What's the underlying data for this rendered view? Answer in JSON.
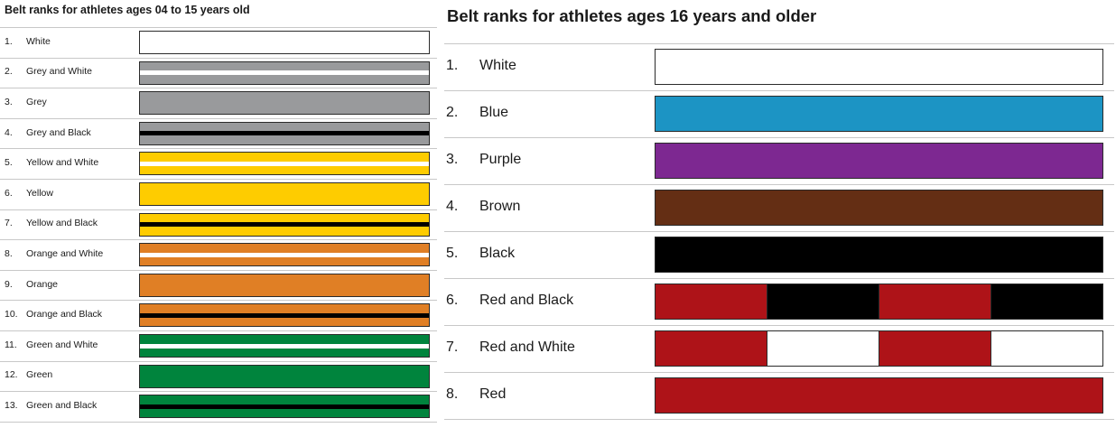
{
  "panels": {
    "youth": {
      "title": "Belt ranks for athletes ages 04 to 15 years old",
      "ranks": [
        {
          "num": "1.",
          "name": "White",
          "colors": [
            "#ffffff"
          ],
          "stripe": null
        },
        {
          "num": "2.",
          "name": "Grey and White",
          "colors": [
            "#999a9c"
          ],
          "stripe": "#ffffff"
        },
        {
          "num": "3.",
          "name": "Grey",
          "colors": [
            "#999a9c"
          ],
          "stripe": null
        },
        {
          "num": "4.",
          "name": "Grey and Black",
          "colors": [
            "#999a9c"
          ],
          "stripe": "#000000"
        },
        {
          "num": "5.",
          "name": "Yellow and White",
          "colors": [
            "#fecc00"
          ],
          "stripe": "#ffffff"
        },
        {
          "num": "6.",
          "name": "Yellow",
          "colors": [
            "#fecc00"
          ],
          "stripe": null
        },
        {
          "num": "7.",
          "name": "Yellow and Black",
          "colors": [
            "#fecc00"
          ],
          "stripe": "#000000"
        },
        {
          "num": "8.",
          "name": "Orange and White",
          "colors": [
            "#e07f25"
          ],
          "stripe": "#ffffff"
        },
        {
          "num": "9.",
          "name": "Orange",
          "colors": [
            "#e07f25"
          ],
          "stripe": null
        },
        {
          "num": "10.",
          "name": "Orange and Black",
          "colors": [
            "#e07f25"
          ],
          "stripe": "#000000"
        },
        {
          "num": "11.",
          "name": "Green and White",
          "colors": [
            "#00843d"
          ],
          "stripe": "#ffffff"
        },
        {
          "num": "12.",
          "name": "Green",
          "colors": [
            "#00843d"
          ],
          "stripe": null
        },
        {
          "num": "13.",
          "name": "Green and Black",
          "colors": [
            "#00843d"
          ],
          "stripe": "#000000"
        }
      ]
    },
    "adult": {
      "title": "Belt ranks for athletes ages 16 years and older",
      "ranks": [
        {
          "num": "1.",
          "name": "White",
          "colors": [
            "#ffffff"
          ],
          "stripe": null
        },
        {
          "num": "2.",
          "name": "Blue",
          "colors": [
            "#1c94c4"
          ],
          "stripe": null
        },
        {
          "num": "3.",
          "name": "Purple",
          "colors": [
            "#7d2891"
          ],
          "stripe": null
        },
        {
          "num": "4.",
          "name": "Brown",
          "colors": [
            "#642e14"
          ],
          "stripe": null
        },
        {
          "num": "5.",
          "name": "Black",
          "colors": [
            "#000000"
          ],
          "stripe": null
        },
        {
          "num": "6.",
          "name": "Red and Black",
          "colors": [
            "#ae1318",
            "#000000",
            "#ae1318",
            "#000000"
          ],
          "stripe": null
        },
        {
          "num": "7.",
          "name": "Red and White",
          "colors": [
            "#ae1318",
            "#ffffff",
            "#ae1318",
            "#ffffff"
          ],
          "stripe": null
        },
        {
          "num": "8.",
          "name": "Red",
          "colors": [
            "#ae1318"
          ],
          "stripe": null
        }
      ]
    }
  }
}
